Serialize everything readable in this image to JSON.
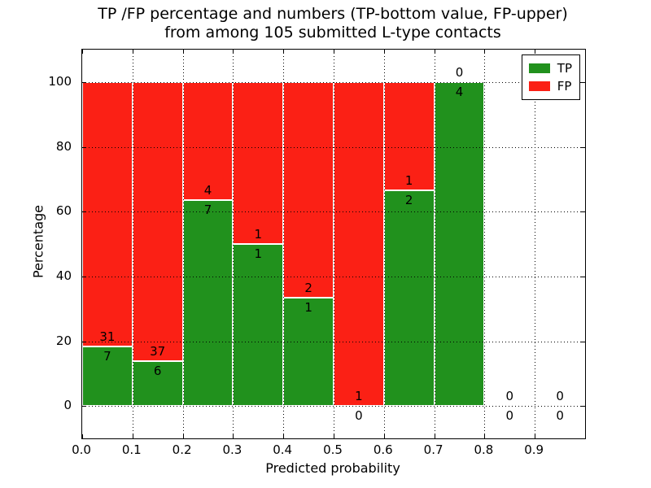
{
  "chart_data": {
    "type": "bar",
    "stacked": true,
    "title": "TP /FP percentage and numbers (TP-bottom value, FP-upper)\nfrom among 105 submitted L-type contacts",
    "title_line1": "TP /FP percentage and numbers (TP-bottom value, FP-upper)",
    "title_line2": "from among 105 submitted L-type contacts",
    "xlabel": "Predicted probability",
    "ylabel": "Percentage",
    "xlim": [
      0.0,
      1.0
    ],
    "ylim": [
      -10,
      110
    ],
    "xticks": [
      "0.0",
      "0.1",
      "0.2",
      "0.3",
      "0.4",
      "0.5",
      "0.6",
      "0.7",
      "0.8",
      "0.9"
    ],
    "yticks": [
      0,
      20,
      40,
      60,
      80,
      100
    ],
    "grid": "dotted, both axes, drawn above bars",
    "bar_edge_color": "#ffffff",
    "legend": {
      "position": "upper right",
      "entries": [
        {
          "label": "TP",
          "color": "#21911d"
        },
        {
          "label": "FP",
          "color": "#fb2015"
        }
      ]
    },
    "bin_width": 0.1,
    "bins": [
      {
        "x0": 0.0,
        "x1": 0.1,
        "tp": 7,
        "fp": 31,
        "tp_pct": 18.42
      },
      {
        "x0": 0.1,
        "x1": 0.2,
        "tp": 6,
        "fp": 37,
        "tp_pct": 13.95
      },
      {
        "x0": 0.2,
        "x1": 0.3,
        "tp": 7,
        "fp": 4,
        "tp_pct": 63.64
      },
      {
        "x0": 0.3,
        "x1": 0.4,
        "tp": 1,
        "fp": 1,
        "tp_pct": 50.0
      },
      {
        "x0": 0.4,
        "x1": 0.5,
        "tp": 1,
        "fp": 2,
        "tp_pct": 33.33
      },
      {
        "x0": 0.5,
        "x1": 0.6,
        "tp": 0,
        "fp": 1,
        "tp_pct": 0.0
      },
      {
        "x0": 0.6,
        "x1": 0.7,
        "tp": 2,
        "fp": 1,
        "tp_pct": 66.67
      },
      {
        "x0": 0.7,
        "x1": 0.8,
        "tp": 4,
        "fp": 0,
        "tp_pct": 100.0
      },
      {
        "x0": 0.8,
        "x1": 0.9,
        "tp": 0,
        "fp": 0,
        "tp_pct": null
      },
      {
        "x0": 0.9,
        "x1": 1.0,
        "tp": 0,
        "fp": 0,
        "tp_pct": null
      }
    ],
    "total_contacts": 105
  }
}
